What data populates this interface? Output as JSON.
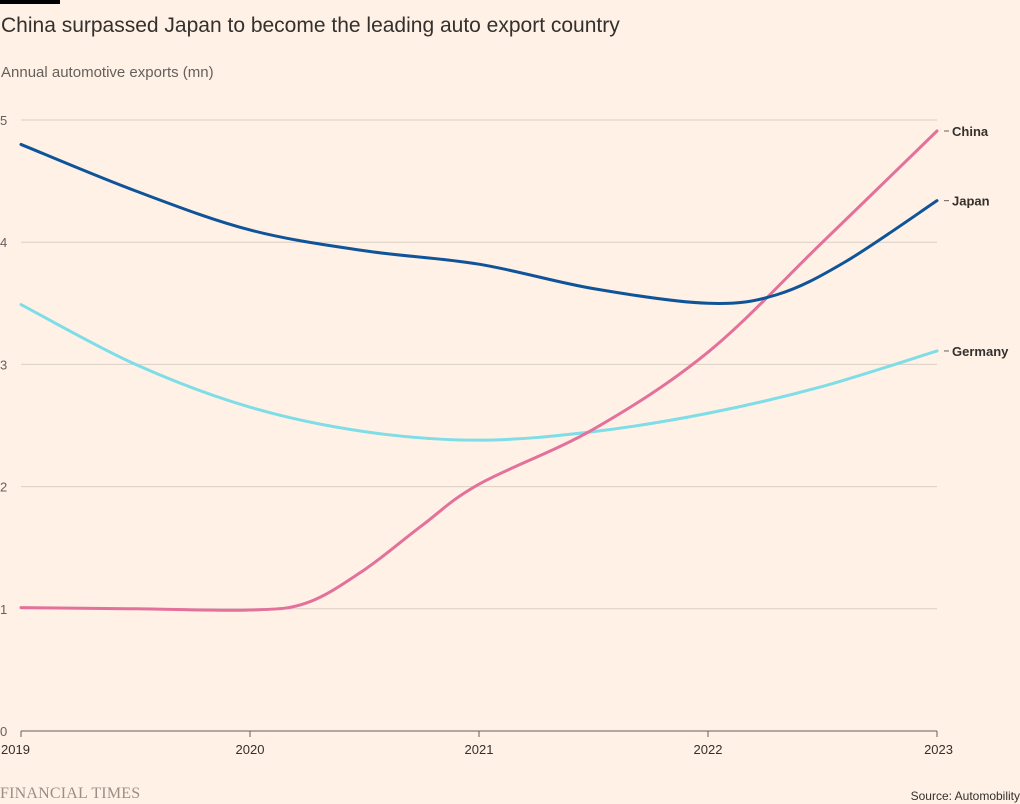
{
  "title": "China surpassed Japan to become the leading auto export country",
  "subtitle": "Annual automotive exports (mn)",
  "brand": "FINANCIAL TIMES",
  "source": "Source: Automobility",
  "chart_data": {
    "type": "line",
    "title": "China surpassed Japan to become the leading auto export country",
    "ylabel": "Annual automotive exports (mn)",
    "xlabel": "",
    "x": [
      2019,
      2020,
      2021,
      2022,
      2023
    ],
    "x_ticks": [
      "2019",
      "2020",
      "2021",
      "2022",
      "2023"
    ],
    "y_ticks": [
      "0",
      "1",
      "2",
      "3",
      "4",
      "5"
    ],
    "ylim": [
      0,
      5
    ],
    "grid": true,
    "legend": "direct labels at line ends (right)",
    "series": [
      {
        "name": "China",
        "color": "#e3719c",
        "points": [
          [
            2019,
            1.01
          ],
          [
            2019.5,
            1.0
          ],
          [
            2020,
            0.99
          ],
          [
            2020.25,
            1.05
          ],
          [
            2020.5,
            1.32
          ],
          [
            2020.75,
            1.68
          ],
          [
            2021,
            2.02
          ],
          [
            2021.5,
            2.47
          ],
          [
            2022,
            3.1
          ],
          [
            2022.5,
            4.0
          ],
          [
            2023,
            4.91
          ]
        ]
      },
      {
        "name": "Japan",
        "color": "#0f5499",
        "points": [
          [
            2019,
            4.8
          ],
          [
            2019.5,
            4.42
          ],
          [
            2020,
            4.1
          ],
          [
            2020.5,
            3.93
          ],
          [
            2021,
            3.82
          ],
          [
            2021.5,
            3.62
          ],
          [
            2022,
            3.5
          ],
          [
            2022.3,
            3.57
          ],
          [
            2022.6,
            3.84
          ],
          [
            2023,
            4.34
          ]
        ]
      },
      {
        "name": "Germany",
        "color": "#7fdde8",
        "points": [
          [
            2019,
            3.49
          ],
          [
            2019.5,
            3.0
          ],
          [
            2020,
            2.65
          ],
          [
            2020.5,
            2.45
          ],
          [
            2021,
            2.38
          ],
          [
            2021.5,
            2.45
          ],
          [
            2022,
            2.6
          ],
          [
            2022.5,
            2.82
          ],
          [
            2023,
            3.11
          ]
        ]
      }
    ]
  }
}
